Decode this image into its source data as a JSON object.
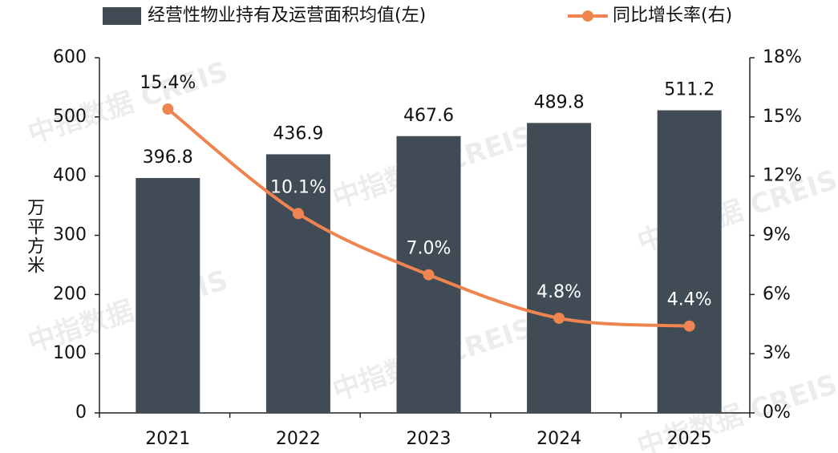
{
  "chart_data": {
    "type": "bar-line",
    "categories": [
      "2021",
      "2022",
      "2023",
      "2024",
      "2025"
    ],
    "series": [
      {
        "name": "经营性物业持有及运营面积均值(左)",
        "type": "bar",
        "color": "#414b55",
        "values": [
          396.8,
          436.9,
          467.6,
          489.8,
          511.2
        ]
      },
      {
        "name": "同比增长率(右)",
        "type": "line",
        "axis": "y2",
        "color": "#ee8550",
        "values": [
          15.4,
          10.1,
          7.0,
          4.8,
          4.4
        ],
        "value_labels": [
          "15.4%",
          "10.1%",
          "7.0%",
          "4.8%",
          "4.4%"
        ]
      }
    ],
    "ylabel": "万平方米",
    "ylim": [
      0,
      600
    ],
    "yticks": [
      0,
      100,
      200,
      300,
      400,
      500,
      600
    ],
    "y2lim": [
      0,
      18
    ],
    "y2ticks": [
      {
        "value": 0,
        "label": "0%"
      },
      {
        "value": 3,
        "label": "3%"
      },
      {
        "value": 6,
        "label": "6%"
      },
      {
        "value": 9,
        "label": "9%"
      },
      {
        "value": 12,
        "label": "12%"
      },
      {
        "value": 15,
        "label": "15%"
      },
      {
        "value": 18,
        "label": "18%"
      }
    ],
    "legend": "top",
    "watermark": "中指数据 CREIS"
  }
}
